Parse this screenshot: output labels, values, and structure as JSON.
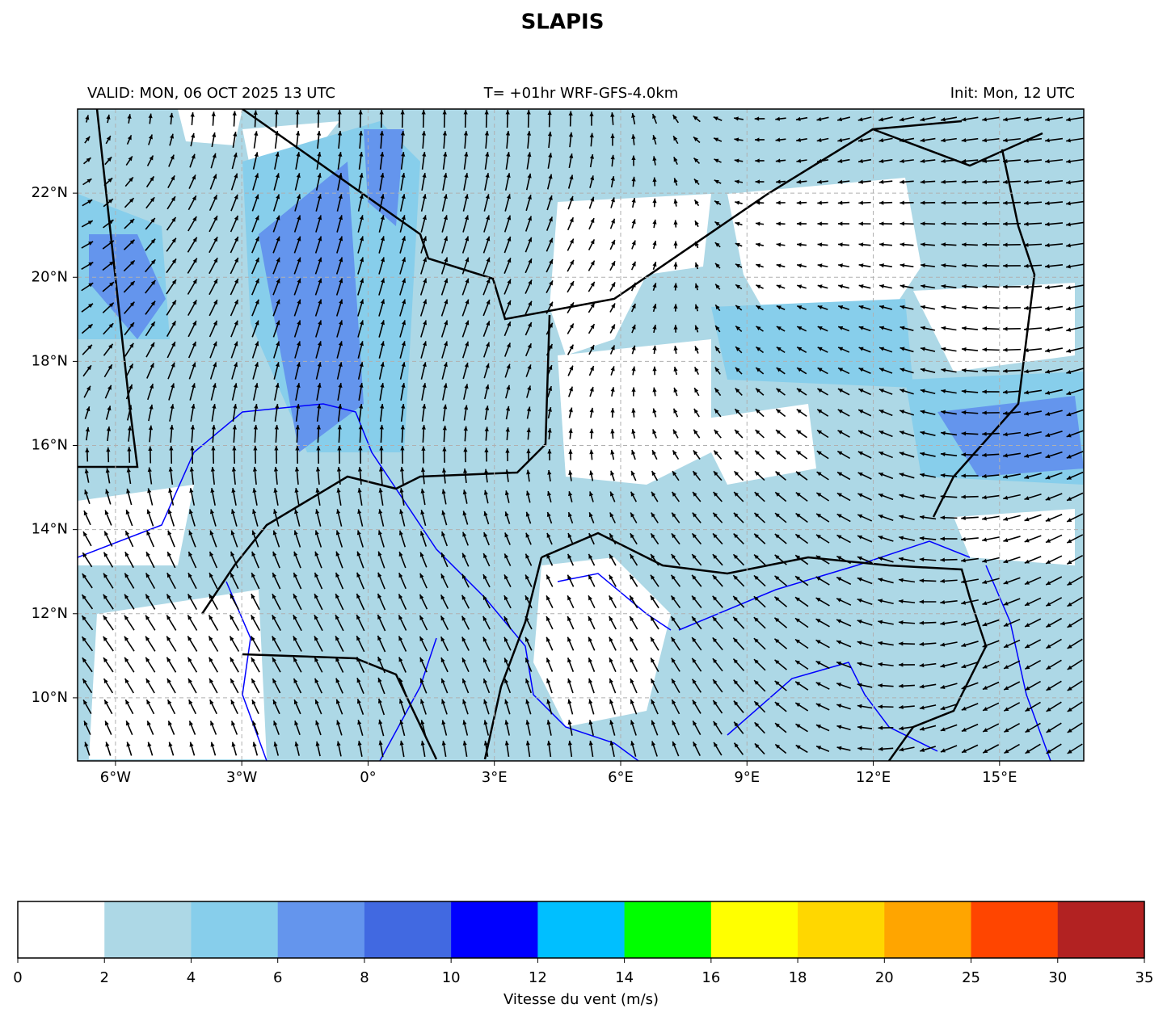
{
  "title": "SLAPIS",
  "subtitle_left": "VALID: MON, 06 OCT 2025 13 UTC",
  "subtitle_center": "T= +01hr WRF-GFS-4.0km",
  "subtitle_right": "Init: Mon, 12 UTC",
  "map": {
    "xlim": [
      -6.9,
      17
    ],
    "ylim": [
      8.5,
      24
    ],
    "grid": true,
    "xticks": [
      {
        "value": -6,
        "label": "6°W"
      },
      {
        "value": -3,
        "label": "3°W"
      },
      {
        "value": 0,
        "label": "0°"
      },
      {
        "value": 3,
        "label": "3°E"
      },
      {
        "value": 6,
        "label": "6°E"
      },
      {
        "value": 9,
        "label": "9°E"
      },
      {
        "value": 12,
        "label": "12°E"
      },
      {
        "value": 15,
        "label": "15°E"
      }
    ],
    "yticks": [
      {
        "value": 10,
        "label": "10°N"
      },
      {
        "value": 12,
        "label": "12°N"
      },
      {
        "value": 14,
        "label": "14°N"
      },
      {
        "value": 16,
        "label": "16°N"
      },
      {
        "value": 18,
        "label": "18°N"
      },
      {
        "value": 20,
        "label": "20°N"
      },
      {
        "value": 22,
        "label": "22°N"
      }
    ]
  },
  "colorbar": {
    "label": "Vitesse du vent (m/s)",
    "levels": [
      0,
      2,
      4,
      6,
      8,
      10,
      12,
      14,
      16,
      18,
      20,
      25,
      30,
      35
    ],
    "colors": [
      "#ffffff",
      "#add8e6",
      "#87ceeb",
      "#6495ed",
      "#4169e1",
      "#0000ff",
      "#00bfff",
      "#00ff00",
      "#ffff00",
      "#ffd700",
      "#ffa500",
      "#ff4500",
      "#b22222"
    ]
  }
}
